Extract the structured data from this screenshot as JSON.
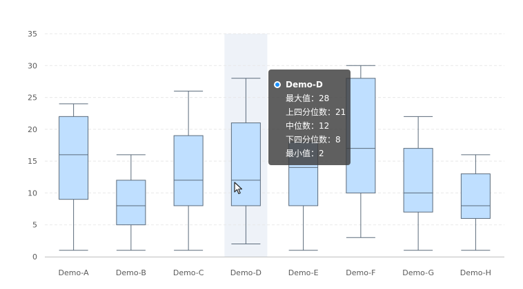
{
  "chart_data": {
    "type": "boxplot",
    "categories": [
      "Demo-A",
      "Demo-B",
      "Demo-C",
      "Demo-D",
      "Demo-E",
      "Demo-F",
      "Demo-G",
      "Demo-H"
    ],
    "series": [
      {
        "values": [
          {
            "low": 1,
            "q1": 9,
            "median": 16,
            "q3": 22,
            "high": 24
          },
          {
            "low": 1,
            "q1": 5,
            "median": 8,
            "q3": 12,
            "high": 16
          },
          {
            "low": 1,
            "q1": 8,
            "median": 12,
            "q3": 19,
            "high": 26
          },
          {
            "low": 2,
            "q1": 8,
            "median": 12,
            "q3": 21,
            "high": 28
          },
          {
            "low": 1,
            "q1": 8,
            "median": 14,
            "q3": 18,
            "high": 18
          },
          {
            "low": 3,
            "q1": 10,
            "median": 17,
            "q3": 28,
            "high": 30
          },
          {
            "low": 1,
            "q1": 7,
            "median": 10,
            "q3": 17,
            "high": 22
          },
          {
            "low": 1,
            "q1": 6,
            "median": 8,
            "q3": 13,
            "high": 16
          }
        ]
      }
    ],
    "y_ticks": [
      0,
      5,
      10,
      15,
      20,
      25,
      30,
      35
    ],
    "ylim": [
      0,
      35
    ],
    "grid": true,
    "highlighted_category": "Demo-D",
    "colors": {
      "box_fill": "#bfdfff",
      "box_stroke": "#5a6a7a",
      "highlight": "#eef2f8",
      "grid": "#e8e8e8",
      "accent": "#1890ff"
    }
  },
  "tooltip": {
    "title": "Demo-D",
    "rows": [
      {
        "label": "最大值",
        "value": "28"
      },
      {
        "label": "上四分位数",
        "value": "21"
      },
      {
        "label": "中位数",
        "value": "12"
      },
      {
        "label": "下四分位数",
        "value": "8"
      },
      {
        "label": "最小值",
        "value": "2"
      }
    ]
  }
}
